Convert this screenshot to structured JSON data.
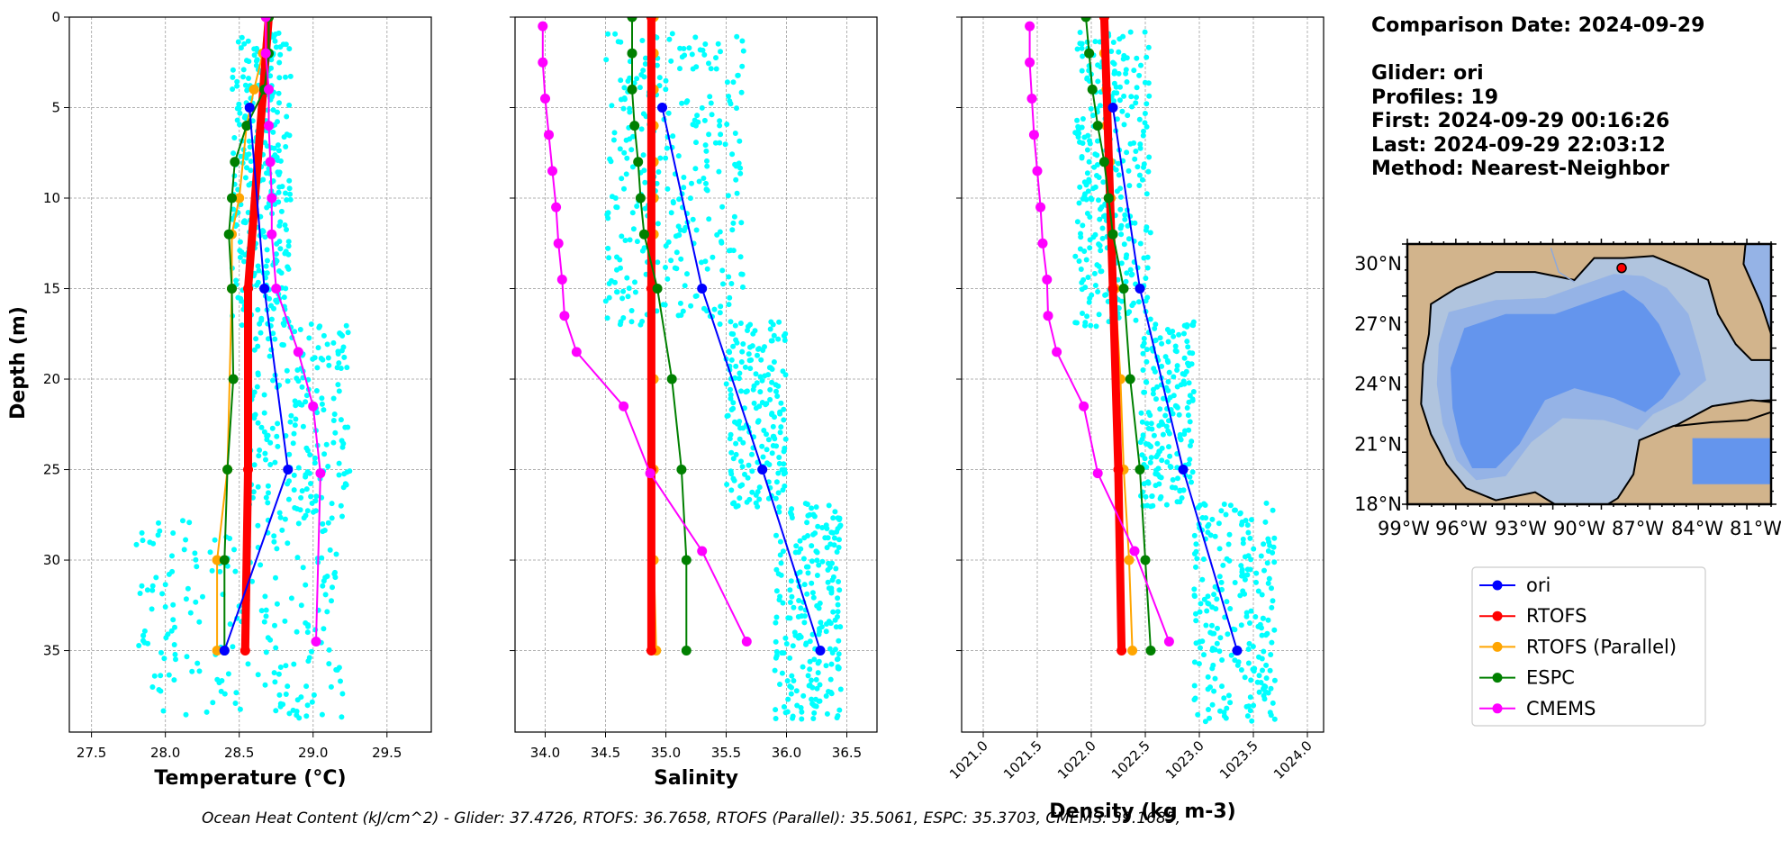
{
  "info": {
    "comparison_date": "Comparison Date: 2024-09-29",
    "glider": "Glider: ori",
    "profiles": "Profiles: 19",
    "first": "First: 2024-09-29 00:16:26",
    "last": "Last: 2024-09-29 22:03:12",
    "method": "Method: Nearest-Neighbor"
  },
  "footer": "Ocean Heat Content (kJ/cm^2) - Glider: 37.4726,  RTOFS: 36.7658,  RTOFS (Parallel): 35.5061,  ESPC: 35.3703,  CMEMS: 39.1685,",
  "colors": {
    "ori": "#0000ff",
    "RTOFS": "#ff0000",
    "RTOFS (Parallel)": "#ffa500",
    "ESPC": "#008000",
    "CMEMS": "#ff00ff",
    "glider_scatter": "#00ffff"
  },
  "chart_data": [
    {
      "type": "line",
      "xlabel": "Temperature (°C)",
      "ylabel": "Depth (m)",
      "xlim": [
        27.35,
        29.8
      ],
      "ylim": [
        39.5,
        0
      ],
      "xticks": [
        "27.5",
        "28.0",
        "28.5",
        "29.0",
        "29.5"
      ],
      "xtick_values": [
        27.5,
        28.0,
        28.5,
        29.0,
        29.5
      ],
      "yticks": [
        0,
        5,
        10,
        15,
        20,
        25,
        30,
        35
      ],
      "grid": true,
      "scatter_band": {
        "series": "Glider profiles",
        "depth_segments": [
          [
            1,
            17,
            28.45,
            28.85
          ],
          [
            17,
            28,
            28.55,
            29.25
          ],
          [
            28,
            39,
            27.8,
            29.2
          ]
        ]
      },
      "series": [
        {
          "name": "ori",
          "x": [
            28.57,
            28.67,
            28.83,
            28.4
          ],
          "y": [
            5,
            15,
            25,
            35
          ]
        },
        {
          "name": "RTOFS",
          "x": [
            28.7,
            28.56,
            28.56,
            28.54
          ],
          "y": [
            0,
            15,
            25,
            35
          ]
        },
        {
          "name": "RTOFS (Parallel)",
          "x": [
            28.68,
            28.66,
            28.6,
            28.55,
            28.5,
            28.45,
            28.45,
            28.42,
            28.35,
            28.35
          ],
          "y": [
            0,
            2,
            4,
            6,
            10,
            12,
            15,
            25,
            30,
            35
          ]
        },
        {
          "name": "ESPC",
          "x": [
            28.7,
            28.7,
            28.67,
            28.55,
            28.47,
            28.45,
            28.43,
            28.45,
            28.46,
            28.42,
            28.4,
            28.4
          ],
          "y": [
            0,
            2,
            4,
            6,
            8,
            10,
            12,
            15,
            20,
            25,
            30,
            35
          ]
        },
        {
          "name": "CMEMS",
          "x": [
            28.68,
            28.68,
            28.7,
            28.7,
            28.71,
            28.72,
            28.72,
            28.75,
            28.9,
            29.0,
            29.05,
            29.02
          ],
          "y": [
            0,
            2,
            4,
            6,
            8,
            10,
            12,
            15,
            18.5,
            21.5,
            25.2,
            34.5
          ]
        }
      ]
    },
    {
      "type": "line",
      "xlabel": "Salinity",
      "xlim": [
        33.75,
        36.75
      ],
      "ylim": [
        39.5,
        0
      ],
      "xticks": [
        "34.0",
        "34.5",
        "35.0",
        "35.5",
        "36.0",
        "36.5"
      ],
      "xtick_values": [
        34.0,
        34.5,
        35.0,
        35.5,
        36.0,
        36.5
      ],
      "yticks": [
        0,
        5,
        10,
        15,
        20,
        25,
        30,
        35
      ],
      "grid": true,
      "scatter_band": {
        "series": "Glider profiles",
        "depth_segments": [
          [
            1,
            17,
            34.5,
            35.65
          ],
          [
            17,
            27,
            35.5,
            36.0
          ],
          [
            27,
            39,
            35.9,
            36.45
          ]
        ]
      },
      "series": [
        {
          "name": "ori",
          "x": [
            34.97,
            35.3,
            35.8,
            36.28
          ],
          "y": [
            5,
            15,
            25,
            35
          ]
        },
        {
          "name": "RTOFS",
          "x": [
            34.88,
            34.88,
            34.88,
            34.88
          ],
          "y": [
            0,
            15,
            25,
            35
          ]
        },
        {
          "name": "RTOFS (Parallel)",
          "x": [
            34.9,
            34.9,
            34.9,
            34.9,
            34.9,
            34.9,
            34.9,
            34.9,
            34.9,
            34.9,
            34.9,
            34.92
          ],
          "y": [
            0,
            2,
            4,
            6,
            8,
            10,
            12,
            15,
            20,
            25,
            30,
            35
          ]
        },
        {
          "name": "ESPC",
          "x": [
            34.72,
            34.72,
            34.72,
            34.74,
            34.77,
            34.79,
            34.82,
            34.93,
            35.05,
            35.13,
            35.17,
            35.17
          ],
          "y": [
            0,
            2,
            4,
            6,
            8,
            10,
            12,
            15,
            20,
            25,
            30,
            35
          ]
        },
        {
          "name": "CMEMS",
          "x": [
            33.98,
            33.98,
            34.0,
            34.03,
            34.06,
            34.09,
            34.11,
            34.14,
            34.16,
            34.26,
            34.65,
            34.87,
            35.3,
            35.67
          ],
          "y": [
            0.5,
            2.5,
            4.5,
            6.5,
            8.5,
            10.5,
            12.5,
            14.5,
            16.5,
            18.5,
            21.5,
            25.2,
            29.5,
            34.5
          ]
        }
      ]
    },
    {
      "type": "line",
      "xlabel": "Density (kg m-3)",
      "xlim": [
        1020.8,
        1024.15
      ],
      "ylim": [
        39.5,
        0
      ],
      "xticks": [
        "1021.0",
        "1021.5",
        "1022.0",
        "1022.5",
        "1023.0",
        "1023.5",
        "1024.0"
      ],
      "xtick_values": [
        1021.0,
        1021.5,
        1022.0,
        1022.5,
        1023.0,
        1023.5,
        1024.0
      ],
      "yticks": [
        0,
        5,
        10,
        15,
        20,
        25,
        30,
        35
      ],
      "grid": true,
      "scatter_band": {
        "series": "Glider profiles",
        "depth_segments": [
          [
            1,
            17,
            1021.85,
            1022.55
          ],
          [
            17,
            27,
            1022.45,
            1022.95
          ],
          [
            27,
            39,
            1022.95,
            1023.7
          ]
        ]
      },
      "series": [
        {
          "name": "ori",
          "x": [
            1022.2,
            1022.45,
            1022.85,
            1023.35
          ],
          "y": [
            5,
            15,
            25,
            35
          ]
        },
        {
          "name": "RTOFS",
          "x": [
            1022.12,
            1022.2,
            1022.25,
            1022.28
          ],
          "y": [
            0,
            15,
            25,
            35
          ]
        },
        {
          "name": "RTOFS (Parallel)",
          "x": [
            1022.12,
            1022.12,
            1022.14,
            1022.14,
            1022.17,
            1022.18,
            1022.2,
            1022.22,
            1022.27,
            1022.3,
            1022.35,
            1022.38
          ],
          "y": [
            0,
            2,
            4,
            6,
            8,
            10,
            12,
            15,
            20,
            25,
            30,
            35
          ]
        },
        {
          "name": "ESPC",
          "x": [
            1021.95,
            1021.98,
            1022.01,
            1022.06,
            1022.12,
            1022.16,
            1022.2,
            1022.3,
            1022.36,
            1022.45,
            1022.5,
            1022.55
          ],
          "y": [
            0,
            2,
            4,
            6,
            8,
            10,
            12,
            15,
            20,
            25,
            30,
            35
          ]
        },
        {
          "name": "CMEMS",
          "x": [
            1021.43,
            1021.43,
            1021.45,
            1021.47,
            1021.5,
            1021.53,
            1021.55,
            1021.59,
            1021.6,
            1021.68,
            1021.93,
            1022.06,
            1022.4,
            1022.72
          ],
          "y": [
            0.5,
            2.5,
            4.5,
            6.5,
            8.5,
            10.5,
            12.5,
            14.5,
            16.5,
            18.5,
            21.5,
            25.2,
            29.5,
            34.5
          ]
        }
      ]
    }
  ],
  "map": {
    "lon_labels": [
      "99°W",
      "96°W",
      "93°W",
      "90°W",
      "87°W",
      "84°W",
      "81°W"
    ],
    "lat_labels": [
      "30°N",
      "27°N",
      "24°N",
      "21°N",
      "18°N"
    ],
    "lon_range": [
      -98.5,
      -80
    ],
    "lat_range": [
      18,
      31
    ],
    "glider_position": {
      "lon": -87.6,
      "lat": 29.8
    },
    "colors": {
      "land": "#d2b48c",
      "shelf": "#b0c4de",
      "slope": "#95b3e6",
      "deep": "#6495ed"
    }
  },
  "legend": [
    "ori",
    "RTOFS",
    "RTOFS (Parallel)",
    "ESPC",
    "CMEMS"
  ]
}
